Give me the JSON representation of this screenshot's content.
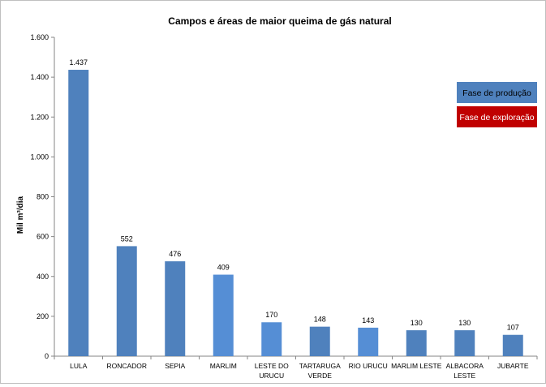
{
  "chart_data": {
    "type": "bar",
    "title": "Campos e áreas de maior queima de gás natural",
    "xlabel": "",
    "ylabel": "Mil m³/dia",
    "ylim": [
      0,
      1600
    ],
    "yticks": [
      0,
      200,
      400,
      600,
      800,
      1000,
      1200,
      1400,
      1600
    ],
    "ytick_labels": [
      "0",
      "200",
      "400",
      "600",
      "800",
      "1.000",
      "1.200",
      "1.400",
      "1.600"
    ],
    "grid": false,
    "categories": [
      [
        "LULA"
      ],
      [
        "RONCADOR"
      ],
      [
        "SEPIA"
      ],
      [
        "MARLIM"
      ],
      [
        "LESTE DO",
        "URUCU"
      ],
      [
        "TARTARUGA",
        "VERDE"
      ],
      [
        "RIO URUCU"
      ],
      [
        "MARLIM LESTE"
      ],
      [
        "ALBACORA",
        "LESTE"
      ],
      [
        "JUBARTE"
      ]
    ],
    "values": [
      1437,
      552,
      476,
      409,
      170,
      148,
      143,
      130,
      130,
      107
    ],
    "value_labels": [
      "1.437",
      "552",
      "476",
      "409",
      "170",
      "148",
      "143",
      "130",
      "130",
      "107"
    ],
    "bar_colors": [
      "#4f81bd",
      "#4f81bd",
      "#4f81bd",
      "#558ed5",
      "#558ed5",
      "#4f81bd",
      "#558ed5",
      "#4f81bd",
      "#4f81bd",
      "#4f81bd"
    ],
    "legend": {
      "placement": "right",
      "items": [
        {
          "label": "Fase de produção",
          "color": "#4f81bd"
        },
        {
          "label": "Fase de exploração",
          "color": "#c00000"
        }
      ]
    }
  }
}
